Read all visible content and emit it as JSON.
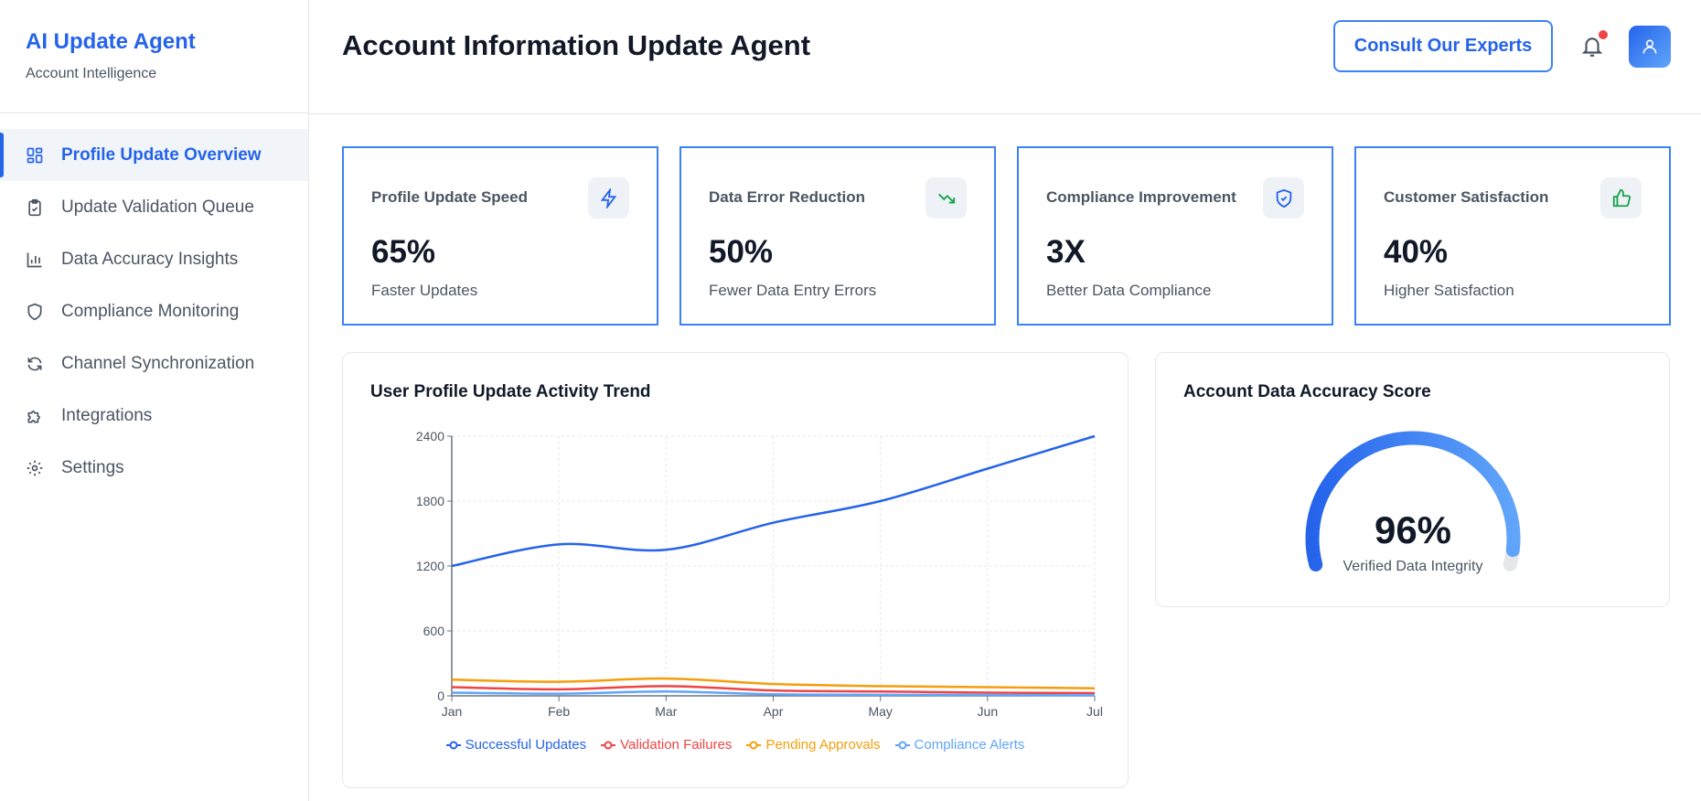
{
  "sidebar": {
    "title": "AI Update Agent",
    "subtitle": "Account Intelligence",
    "items": [
      {
        "label": "Profile Update Overview",
        "icon": "grid-icon",
        "active": true
      },
      {
        "label": "Update Validation Queue",
        "icon": "clipboard-check-icon"
      },
      {
        "label": "Data Accuracy Insights",
        "icon": "bar-chart-icon"
      },
      {
        "label": "Compliance Monitoring",
        "icon": "shield-icon"
      },
      {
        "label": "Channel Synchronization",
        "icon": "refresh-icon"
      },
      {
        "label": "Integrations",
        "icon": "puzzle-icon"
      },
      {
        "label": "Settings",
        "icon": "gear-icon"
      }
    ]
  },
  "header": {
    "title": "Account Information Update Agent",
    "cta": "Consult Our Experts",
    "notification_dot": true
  },
  "stats": [
    {
      "label": "Profile Update Speed",
      "value": "65%",
      "sub": "Faster Updates",
      "icon": "lightning-icon",
      "icon_color": "#2563eb"
    },
    {
      "label": "Data Error Reduction",
      "value": "50%",
      "sub": "Fewer Data Entry Errors",
      "icon": "trending-down-icon",
      "icon_color": "#16a34a"
    },
    {
      "label": "Compliance Improvement",
      "value": "3X",
      "sub": "Better Data Compliance",
      "icon": "shield-check-icon",
      "icon_color": "#2563eb"
    },
    {
      "label": "Customer Satisfaction",
      "value": "40%",
      "sub": "Higher Satisfaction",
      "icon": "thumbs-up-icon",
      "icon_color": "#16a34a"
    }
  ],
  "chart_data": {
    "type": "line",
    "title": "User Profile Update Activity Trend",
    "categories": [
      "Jan",
      "Feb",
      "Mar",
      "Apr",
      "May",
      "Jun",
      "Jul"
    ],
    "ylim": [
      0,
      2400
    ],
    "yticks": [
      0,
      600,
      1200,
      1800,
      2400
    ],
    "grid": true,
    "legend": "bottom",
    "series": [
      {
        "name": "Successful Updates",
        "color": "#2563eb",
        "values": [
          1200,
          1400,
          1350,
          1600,
          1800,
          2100,
          2400
        ]
      },
      {
        "name": "Validation Failures",
        "color": "#ef4444",
        "values": [
          80,
          60,
          90,
          50,
          40,
          30,
          25
        ]
      },
      {
        "name": "Pending Approvals",
        "color": "#f59e0b",
        "values": [
          150,
          130,
          160,
          110,
          90,
          80,
          70
        ]
      },
      {
        "name": "Compliance Alerts",
        "color": "#60a5fa",
        "values": [
          30,
          20,
          40,
          15,
          10,
          8,
          5
        ]
      }
    ]
  },
  "gauge": {
    "title": "Account Data Accuracy Score",
    "value": 96,
    "value_label": "96%",
    "caption": "Verified Data Integrity"
  }
}
